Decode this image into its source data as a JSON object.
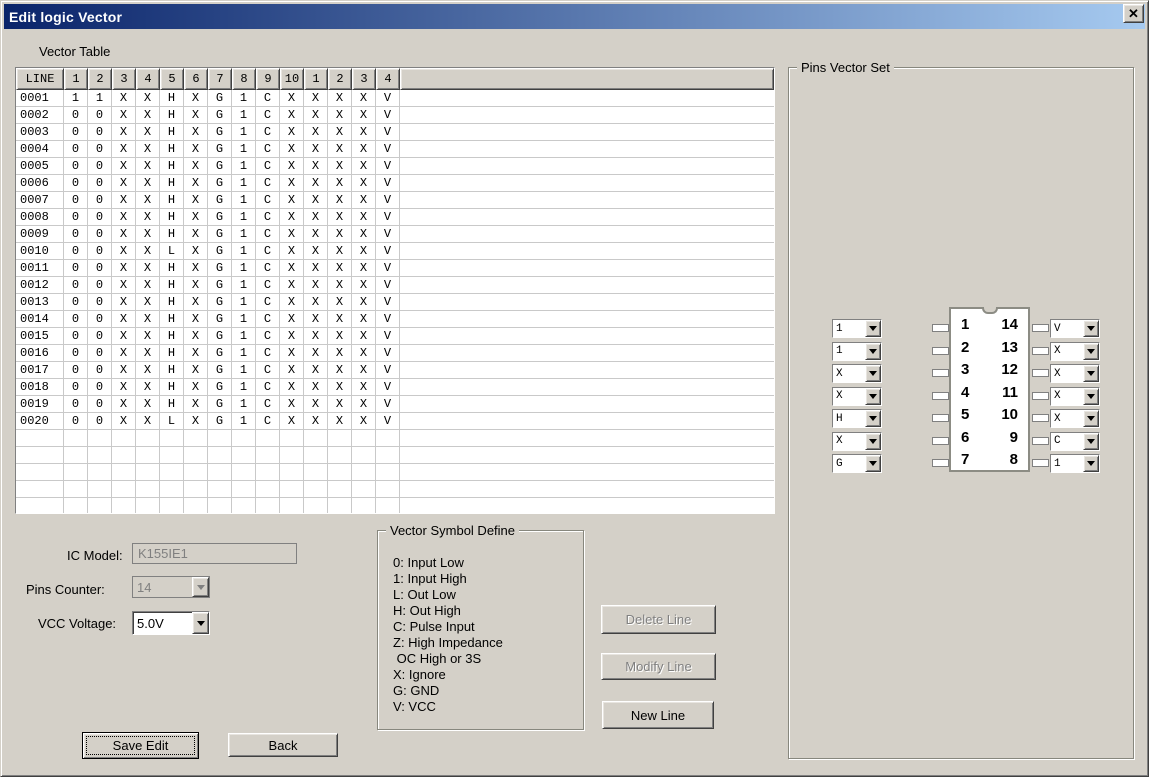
{
  "window": {
    "title": "Edit logic Vector",
    "close_glyph": "✕"
  },
  "vector_table": {
    "section_label": "Vector Table",
    "columns": [
      "LINE",
      "1",
      "2",
      "3",
      "4",
      "5",
      "6",
      "7",
      "8",
      "9",
      "10",
      "1",
      "2",
      "3",
      "4"
    ],
    "rows": [
      {
        "line": "0001",
        "values": [
          "1",
          "1",
          "X",
          "X",
          "H",
          "X",
          "G",
          "1",
          "C",
          "X",
          "X",
          "X",
          "X",
          "V"
        ]
      },
      {
        "line": "0002",
        "values": [
          "0",
          "0",
          "X",
          "X",
          "H",
          "X",
          "G",
          "1",
          "C",
          "X",
          "X",
          "X",
          "X",
          "V"
        ]
      },
      {
        "line": "0003",
        "values": [
          "0",
          "0",
          "X",
          "X",
          "H",
          "X",
          "G",
          "1",
          "C",
          "X",
          "X",
          "X",
          "X",
          "V"
        ]
      },
      {
        "line": "0004",
        "values": [
          "0",
          "0",
          "X",
          "X",
          "H",
          "X",
          "G",
          "1",
          "C",
          "X",
          "X",
          "X",
          "X",
          "V"
        ]
      },
      {
        "line": "0005",
        "values": [
          "0",
          "0",
          "X",
          "X",
          "H",
          "X",
          "G",
          "1",
          "C",
          "X",
          "X",
          "X",
          "X",
          "V"
        ]
      },
      {
        "line": "0006",
        "values": [
          "0",
          "0",
          "X",
          "X",
          "H",
          "X",
          "G",
          "1",
          "C",
          "X",
          "X",
          "X",
          "X",
          "V"
        ]
      },
      {
        "line": "0007",
        "values": [
          "0",
          "0",
          "X",
          "X",
          "H",
          "X",
          "G",
          "1",
          "C",
          "X",
          "X",
          "X",
          "X",
          "V"
        ]
      },
      {
        "line": "0008",
        "values": [
          "0",
          "0",
          "X",
          "X",
          "H",
          "X",
          "G",
          "1",
          "C",
          "X",
          "X",
          "X",
          "X",
          "V"
        ]
      },
      {
        "line": "0009",
        "values": [
          "0",
          "0",
          "X",
          "X",
          "H",
          "X",
          "G",
          "1",
          "C",
          "X",
          "X",
          "X",
          "X",
          "V"
        ]
      },
      {
        "line": "0010",
        "values": [
          "0",
          "0",
          "X",
          "X",
          "L",
          "X",
          "G",
          "1",
          "C",
          "X",
          "X",
          "X",
          "X",
          "V"
        ]
      },
      {
        "line": "0011",
        "values": [
          "0",
          "0",
          "X",
          "X",
          "H",
          "X",
          "G",
          "1",
          "C",
          "X",
          "X",
          "X",
          "X",
          "V"
        ]
      },
      {
        "line": "0012",
        "values": [
          "0",
          "0",
          "X",
          "X",
          "H",
          "X",
          "G",
          "1",
          "C",
          "X",
          "X",
          "X",
          "X",
          "V"
        ]
      },
      {
        "line": "0013",
        "values": [
          "0",
          "0",
          "X",
          "X",
          "H",
          "X",
          "G",
          "1",
          "C",
          "X",
          "X",
          "X",
          "X",
          "V"
        ]
      },
      {
        "line": "0014",
        "values": [
          "0",
          "0",
          "X",
          "X",
          "H",
          "X",
          "G",
          "1",
          "C",
          "X",
          "X",
          "X",
          "X",
          "V"
        ]
      },
      {
        "line": "0015",
        "values": [
          "0",
          "0",
          "X",
          "X",
          "H",
          "X",
          "G",
          "1",
          "C",
          "X",
          "X",
          "X",
          "X",
          "V"
        ]
      },
      {
        "line": "0016",
        "values": [
          "0",
          "0",
          "X",
          "X",
          "H",
          "X",
          "G",
          "1",
          "C",
          "X",
          "X",
          "X",
          "X",
          "V"
        ]
      },
      {
        "line": "0017",
        "values": [
          "0",
          "0",
          "X",
          "X",
          "H",
          "X",
          "G",
          "1",
          "C",
          "X",
          "X",
          "X",
          "X",
          "V"
        ]
      },
      {
        "line": "0018",
        "values": [
          "0",
          "0",
          "X",
          "X",
          "H",
          "X",
          "G",
          "1",
          "C",
          "X",
          "X",
          "X",
          "X",
          "V"
        ]
      },
      {
        "line": "0019",
        "values": [
          "0",
          "0",
          "X",
          "X",
          "H",
          "X",
          "G",
          "1",
          "C",
          "X",
          "X",
          "X",
          "X",
          "V"
        ]
      },
      {
        "line": "0020",
        "values": [
          "0",
          "0",
          "X",
          "X",
          "L",
          "X",
          "G",
          "1",
          "C",
          "X",
          "X",
          "X",
          "X",
          "V"
        ]
      }
    ],
    "empty_row_count": 5
  },
  "pins_vector_set": {
    "label": "Pins Vector Set",
    "left_pins": [
      {
        "pin": "1",
        "value": "1"
      },
      {
        "pin": "2",
        "value": "1"
      },
      {
        "pin": "3",
        "value": "X"
      },
      {
        "pin": "4",
        "value": "X"
      },
      {
        "pin": "5",
        "value": "H"
      },
      {
        "pin": "6",
        "value": "X"
      },
      {
        "pin": "7",
        "value": "G"
      }
    ],
    "right_pins": [
      {
        "pin": "14",
        "value": "V"
      },
      {
        "pin": "13",
        "value": "X"
      },
      {
        "pin": "12",
        "value": "X"
      },
      {
        "pin": "11",
        "value": "X"
      },
      {
        "pin": "10",
        "value": "X"
      },
      {
        "pin": "9",
        "value": "C"
      },
      {
        "pin": "8",
        "value": "1"
      }
    ]
  },
  "fields": {
    "ic_model": {
      "label": "IC Model:",
      "value": "K155IE1",
      "disabled": true
    },
    "pins_counter": {
      "label": "Pins Counter:",
      "value": "14",
      "disabled": true
    },
    "vcc_voltage": {
      "label": "VCC Voltage:",
      "value": "5.0V",
      "disabled": false
    }
  },
  "symbol_define": {
    "label": "Vector Symbol Define",
    "lines": [
      "0: Input Low",
      "1: Input High",
      "L: Out Low",
      "H: Out High",
      "C: Pulse Input",
      "Z: High Impedance",
      " OC High or 3S",
      "X: Ignore",
      "G: GND",
      "V: VCC"
    ]
  },
  "buttons": {
    "delete_line": "Delete Line",
    "modify_line": "Modify Line",
    "new_line": "New Line",
    "save_edit": "Save Edit",
    "back": "Back"
  },
  "colors": {
    "dialog_bg": "#d4d0c8",
    "titlebar_left": "#0a246a",
    "titlebar_right": "#a6caf0",
    "grid_line": "#c9c9c9",
    "disabled_text": "#808080"
  }
}
